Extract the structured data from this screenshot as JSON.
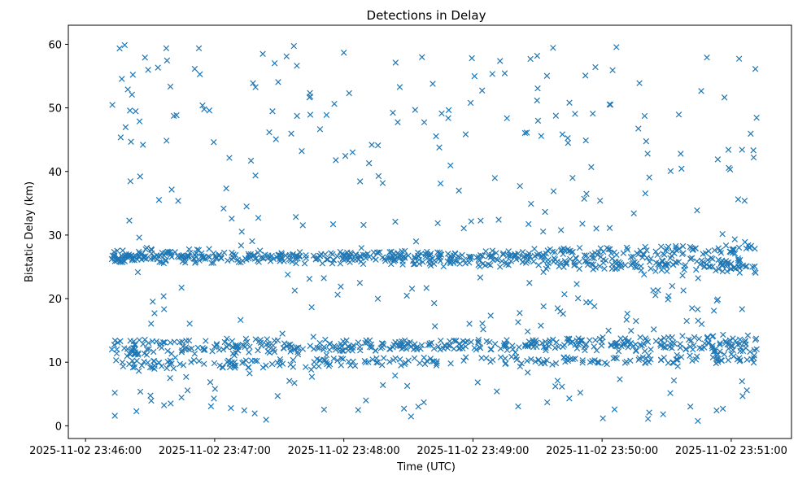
{
  "chart_data": {
    "type": "scatter",
    "title": "Detections in Delay",
    "xlabel": "Time (UTC)",
    "ylabel": "Bistatic Delay (km)",
    "marker": "x",
    "color": "#1f77b4",
    "grid": false,
    "legend": "none",
    "x_ticks": [
      "2025-11-02 23:46:00",
      "2025-11-02 23:47:00",
      "2025-11-02 23:48:00",
      "2025-11-02 23:49:00",
      "2025-11-02 23:50:00",
      "2025-11-02 23:51:00"
    ],
    "y_ticks": [
      0,
      10,
      20,
      30,
      40,
      50,
      60
    ],
    "xlim": [
      "2025-11-02 23:45:52",
      "2025-11-02 23:51:28"
    ],
    "ylim": [
      -2,
      63
    ],
    "series": [
      {
        "x_start": "2025-11-02 23:46:12",
        "x_end": "2025-11-02 23:51:12",
        "points": {
          "count": 1600,
          "tracks": [
            {
              "delay_start": 26.8,
              "delay_end": 24.7
            },
            {
              "delay_start": 26.0,
              "delay_end": 27.8
            },
            {
              "delay_start": 27.4,
              "delay_end": 25.6
            },
            {
              "delay_start": 13.2,
              "delay_end": 12.2
            },
            {
              "delay_start": 9.6,
              "delay_end": 10.6
            },
            {
              "delay_start": 11.6,
              "delay_end": 13.8
            }
          ],
          "scatter_range": [
            0.5,
            60
          ]
        }
      }
    ]
  }
}
